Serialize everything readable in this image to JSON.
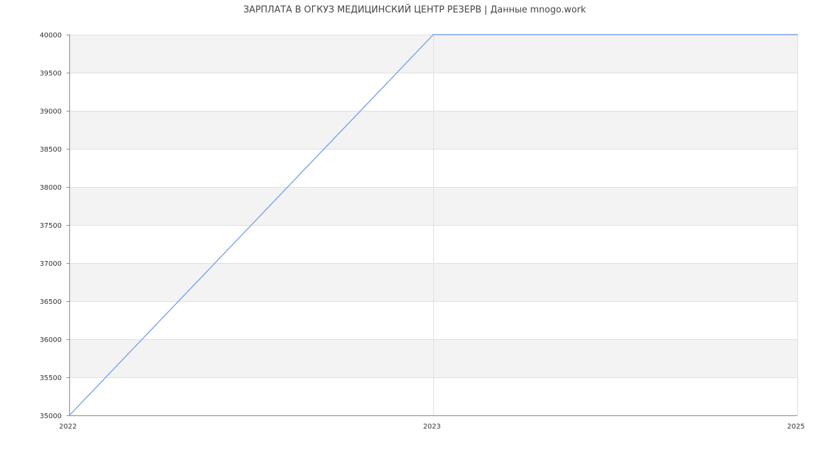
{
  "chart_data": {
    "type": "line",
    "title": "ЗАРПЛАТА В ОГКУЗ МЕДИЦИНСКИЙ ЦЕНТР РЕЗЕРВ | Данные mnogo.work",
    "xlabel": "",
    "ylabel": "",
    "categories": [
      "2022",
      "2023",
      "2025"
    ],
    "series": [
      {
        "values": [
          35000,
          40000,
          40000
        ]
      }
    ],
    "ylim": [
      35000,
      40000
    ],
    "yticks": [
      "35000",
      "35500",
      "36000",
      "36500",
      "37000",
      "37500",
      "38000",
      "38500",
      "39000",
      "39500",
      "40000"
    ],
    "grid": true,
    "legend": "none",
    "colors": {
      "line": "#6495ed",
      "band": "#f3f3f3",
      "grid": "#e0e0e0",
      "axis": "#888888"
    }
  }
}
